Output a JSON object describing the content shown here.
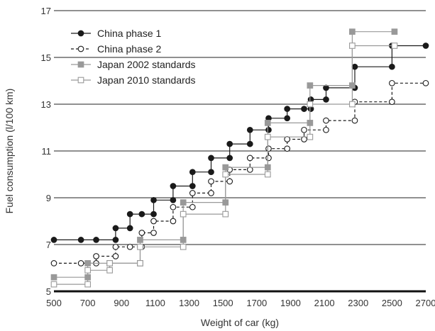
{
  "chart_data": {
    "type": "line",
    "title": "",
    "xlabel": "Weight of car (kg)",
    "ylabel": "Fuel consumption (l/100 km)",
    "xlim": [
      500,
      2700
    ],
    "ylim": [
      5,
      17
    ],
    "xticks": [
      500,
      700,
      900,
      1100,
      1300,
      1500,
      1700,
      1900,
      2100,
      2300,
      2500,
      2700
    ],
    "xtick_labels": [
      "500",
      "700",
      "900",
      "1100",
      "1300",
      "1500",
      "1700",
      "1900",
      "2100",
      "2300",
      "2500",
      "2700"
    ],
    "yticks": [
      5,
      7,
      9,
      11,
      13,
      15,
      17
    ],
    "ytick_labels": [
      "5",
      "7",
      "9",
      "11",
      "13",
      "15",
      "17"
    ],
    "grid": "horizontal",
    "legend_position": "top-left",
    "series": [
      {
        "name": "China phase 1",
        "style": "solid",
        "marker": "filled-circle",
        "color": "#1a1a1a",
        "points": [
          [
            500,
            7.2
          ],
          [
            660,
            7.2
          ],
          [
            750,
            7.2
          ],
          [
            865,
            7.2
          ],
          [
            865,
            7.7
          ],
          [
            950,
            7.7
          ],
          [
            950,
            8.3
          ],
          [
            1020,
            8.3
          ],
          [
            1090,
            8.3
          ],
          [
            1090,
            8.9
          ],
          [
            1205,
            8.9
          ],
          [
            1205,
            9.5
          ],
          [
            1320,
            9.5
          ],
          [
            1320,
            10.1
          ],
          [
            1430,
            10.1
          ],
          [
            1430,
            10.7
          ],
          [
            1540,
            10.7
          ],
          [
            1540,
            11.3
          ],
          [
            1660,
            11.3
          ],
          [
            1660,
            11.9
          ],
          [
            1770,
            11.9
          ],
          [
            1770,
            12.4
          ],
          [
            1880,
            12.4
          ],
          [
            1880,
            12.8
          ],
          [
            1980,
            12.8
          ],
          [
            2020,
            12.8
          ],
          [
            2020,
            13.2
          ],
          [
            2110,
            13.2
          ],
          [
            2110,
            13.7
          ],
          [
            2280,
            13.7
          ],
          [
            2280,
            14.6
          ],
          [
            2500,
            14.6
          ],
          [
            2500,
            15.5
          ],
          [
            2700,
            15.5
          ]
        ]
      },
      {
        "name": "China phase 2",
        "style": "dashed",
        "marker": "open-circle",
        "color": "#1a1a1a",
        "points": [
          [
            500,
            6.2
          ],
          [
            660,
            6.2
          ],
          [
            750,
            6.2
          ],
          [
            750,
            6.5
          ],
          [
            865,
            6.5
          ],
          [
            865,
            6.9
          ],
          [
            950,
            6.9
          ],
          [
            1020,
            6.9
          ],
          [
            1020,
            7.5
          ],
          [
            1090,
            7.5
          ],
          [
            1090,
            8.0
          ],
          [
            1205,
            8.0
          ],
          [
            1205,
            8.6
          ],
          [
            1320,
            8.6
          ],
          [
            1320,
            9.2
          ],
          [
            1430,
            9.2
          ],
          [
            1430,
            9.7
          ],
          [
            1540,
            9.7
          ],
          [
            1540,
            10.2
          ],
          [
            1660,
            10.2
          ],
          [
            1660,
            10.7
          ],
          [
            1770,
            10.7
          ],
          [
            1770,
            11.1
          ],
          [
            1880,
            11.1
          ],
          [
            1880,
            11.5
          ],
          [
            1980,
            11.5
          ],
          [
            1980,
            11.9
          ],
          [
            2110,
            11.9
          ],
          [
            2110,
            12.3
          ],
          [
            2280,
            12.3
          ],
          [
            2280,
            13.1
          ],
          [
            2500,
            13.1
          ],
          [
            2500,
            13.9
          ],
          [
            2700,
            13.9
          ]
        ]
      },
      {
        "name": "Japan 2002 standards",
        "style": "solid",
        "marker": "filled-square",
        "color": "#999999",
        "points": [
          [
            500,
            5.6
          ],
          [
            700,
            5.6
          ],
          [
            700,
            6.2
          ],
          [
            830,
            6.2
          ],
          [
            1010,
            6.2
          ],
          [
            1010,
            7.2
          ],
          [
            1265,
            7.2
          ],
          [
            1265,
            8.8
          ],
          [
            1515,
            8.8
          ],
          [
            1515,
            10.3
          ],
          [
            1765,
            10.3
          ],
          [
            1765,
            12.2
          ],
          [
            2015,
            12.2
          ],
          [
            2015,
            13.8
          ],
          [
            2265,
            13.8
          ],
          [
            2265,
            16.1
          ],
          [
            2515,
            16.1
          ]
        ]
      },
      {
        "name": "Japan 2010 standards",
        "style": "solid",
        "marker": "open-square",
        "color": "#999999",
        "points": [
          [
            500,
            5.3
          ],
          [
            700,
            5.3
          ],
          [
            700,
            5.9
          ],
          [
            830,
            5.9
          ],
          [
            830,
            6.2
          ],
          [
            1010,
            6.2
          ],
          [
            1010,
            6.9
          ],
          [
            1265,
            6.9
          ],
          [
            1265,
            8.3
          ],
          [
            1515,
            8.3
          ],
          [
            1515,
            10.0
          ],
          [
            1765,
            10.0
          ],
          [
            1765,
            11.6
          ],
          [
            2015,
            11.6
          ],
          [
            2015,
            13.0
          ],
          [
            2265,
            13.0
          ],
          [
            2265,
            15.5
          ],
          [
            2515,
            15.5
          ]
        ]
      }
    ]
  }
}
